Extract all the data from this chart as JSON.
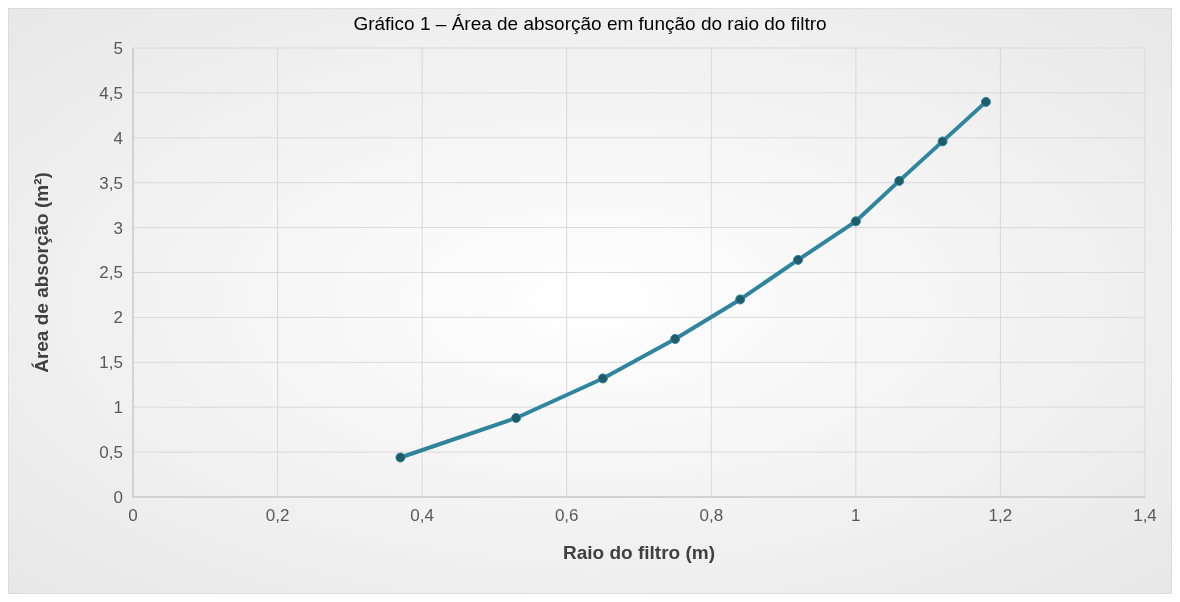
{
  "chart_data": {
    "type": "line",
    "title": "Gráfico 1 – Área de absorção em função do raio do filtro",
    "xlabel": "Raio do filtro (m)",
    "ylabel": "Área de absorção (m²)",
    "x": [
      0.37,
      0.53,
      0.65,
      0.75,
      0.84,
      0.92,
      1.0,
      1.06,
      1.12,
      1.18
    ],
    "series": [
      {
        "color": "#31849b",
        "values": [
          0.44,
          0.88,
          1.32,
          1.76,
          2.2,
          2.64,
          3.07,
          3.52,
          3.96,
          4.4
        ]
      }
    ],
    "xlim": [
      0,
      1.4
    ],
    "xticks": [
      0,
      {
        "value": 0.2,
        "label": "0,2"
      },
      {
        "value": 0.4,
        "label": "0,4"
      },
      {
        "value": 0.6,
        "label": "0,6"
      },
      {
        "value": 0.8,
        "label": "0,8"
      },
      1,
      {
        "value": 1.2,
        "label": "1,2"
      },
      {
        "value": 1.4,
        "label": "1,4"
      }
    ],
    "ylim": [
      0,
      5
    ],
    "yticks": [
      0,
      {
        "value": 0.5,
        "label": "0,5"
      },
      1,
      {
        "value": 1.5,
        "label": "1,5"
      },
      2,
      {
        "value": 2.5,
        "label": "2,5"
      },
      3,
      {
        "value": 3.5,
        "label": "3,5"
      },
      4,
      {
        "value": 4.5,
        "label": "4,5"
      },
      5
    ],
    "grid": true,
    "marker": "circle",
    "line_style": "solid"
  }
}
